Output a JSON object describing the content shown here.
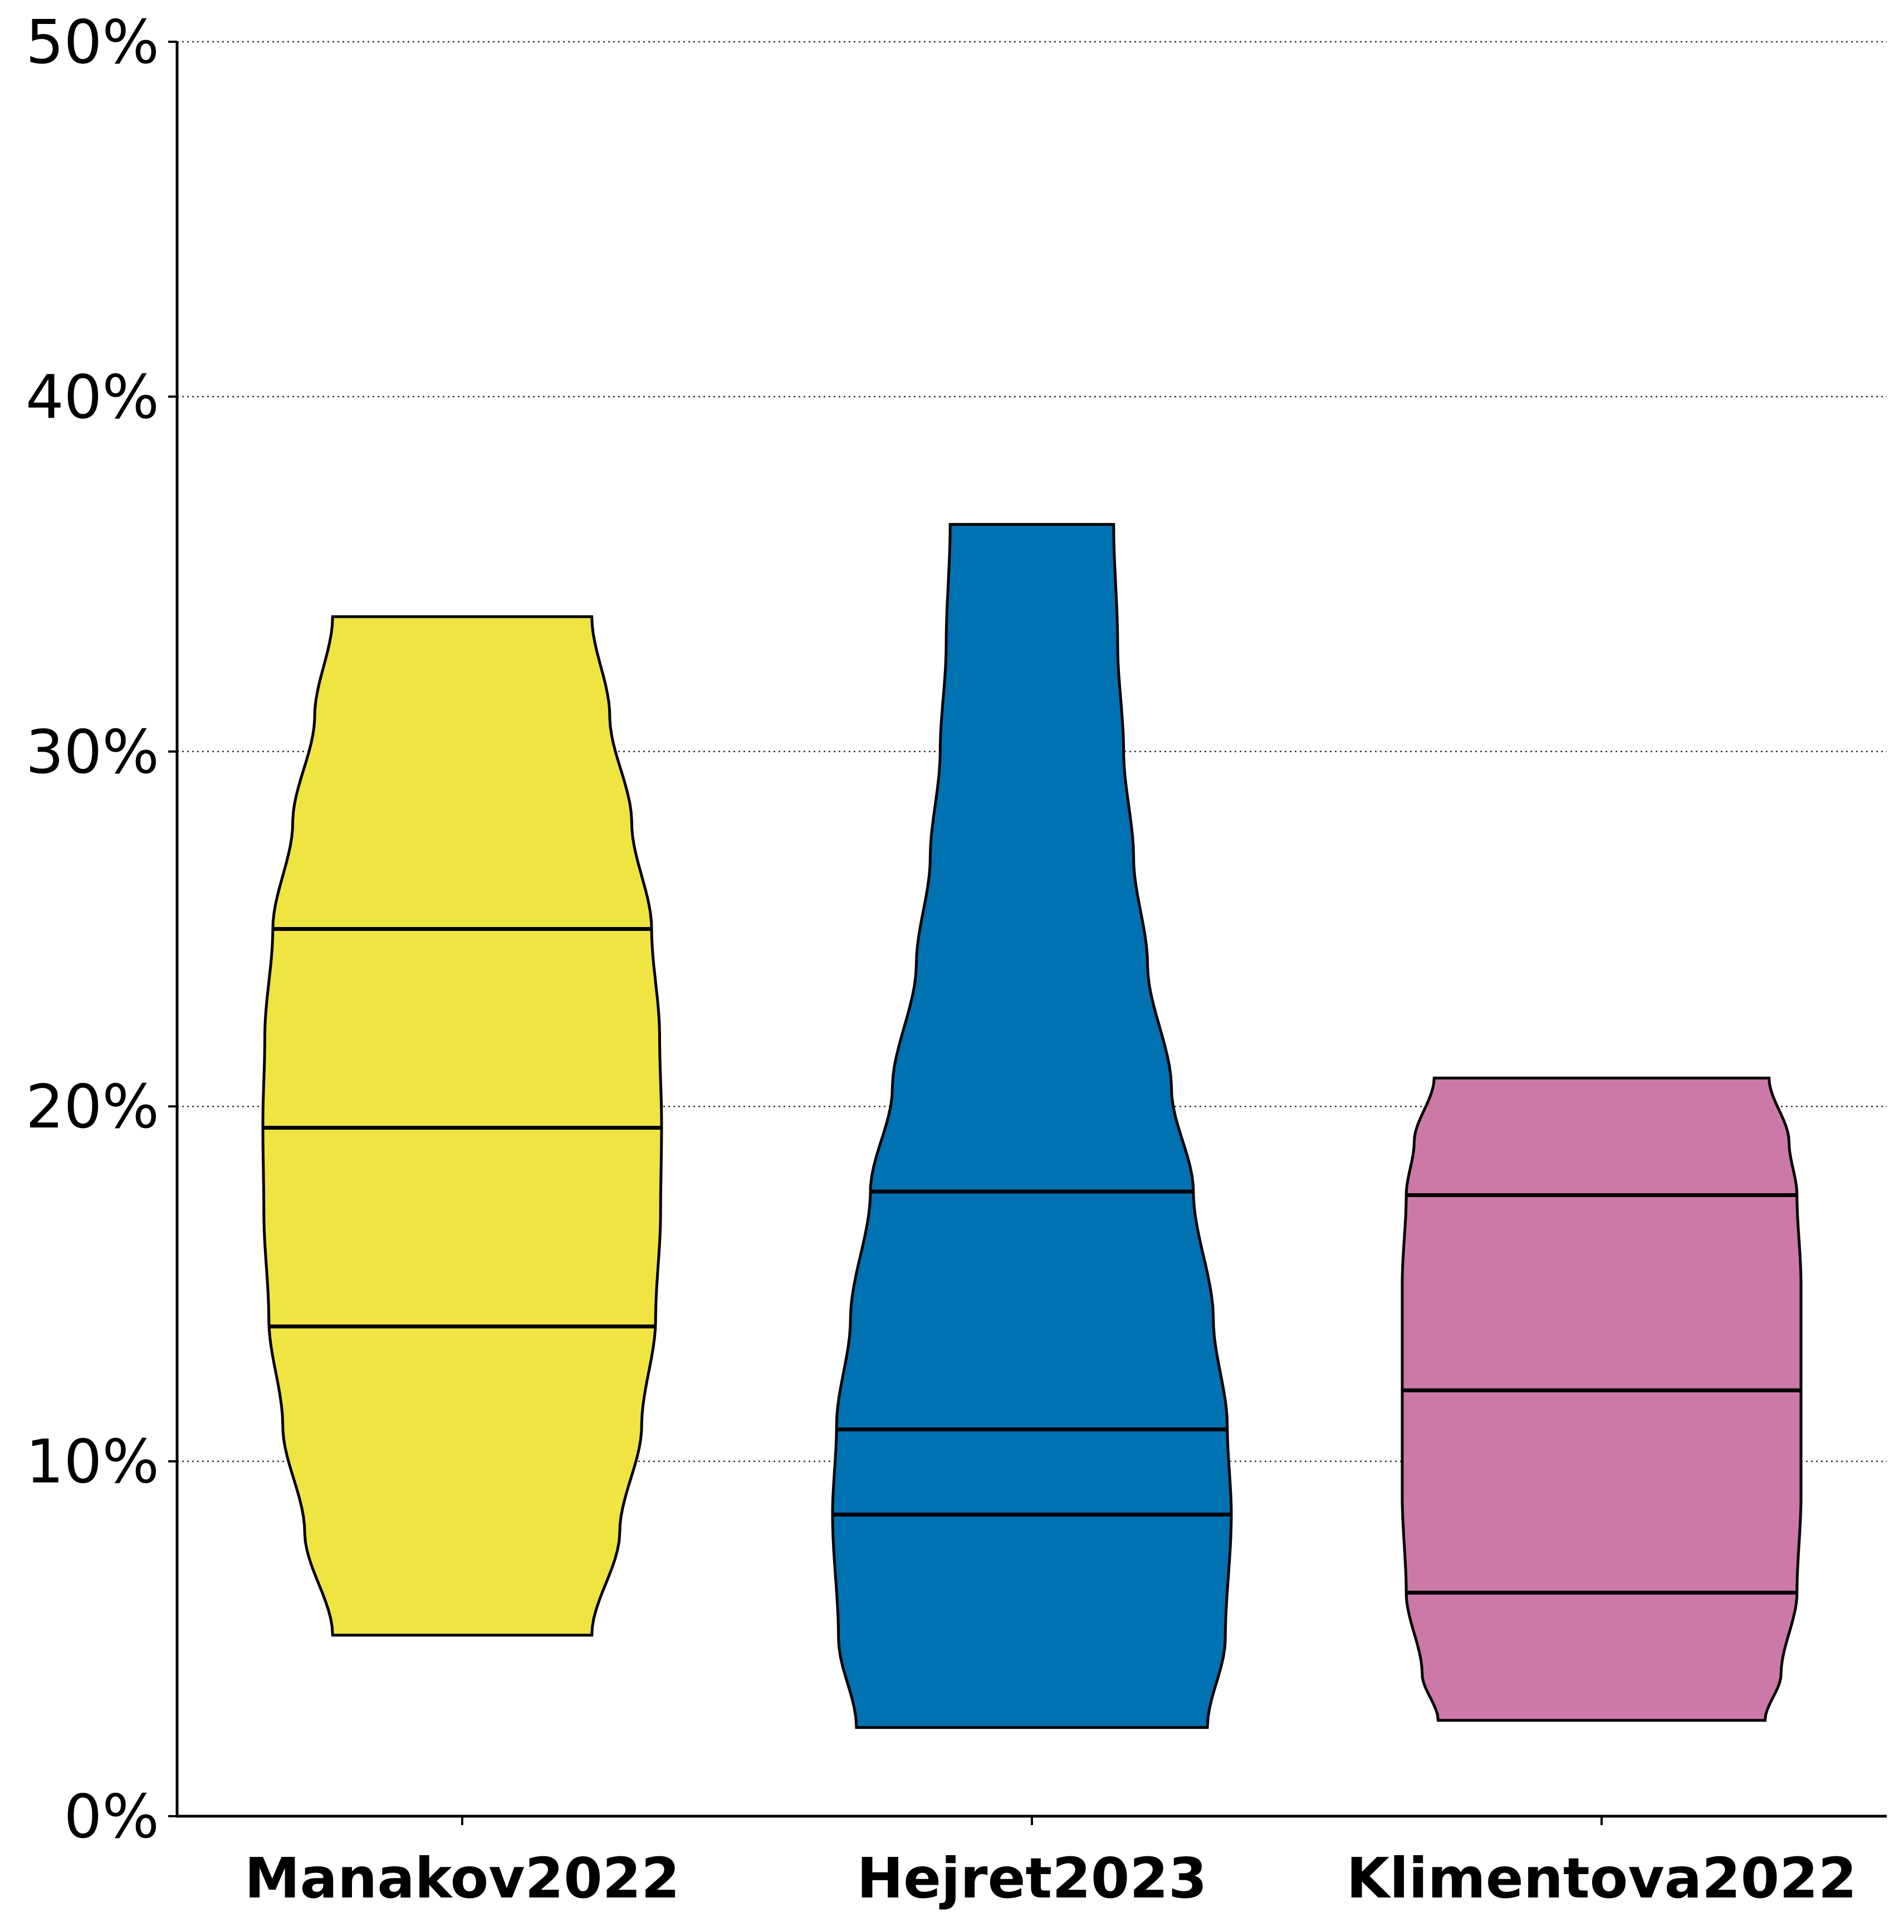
{
  "chart_data": {
    "type": "violin",
    "title": "",
    "xlabel": "",
    "ylabel": "",
    "ylim": [
      0,
      50
    ],
    "yticks": [
      "0%",
      "10%",
      "20%",
      "30%",
      "40%",
      "50%"
    ],
    "ytick_values": [
      0,
      10,
      20,
      30,
      40,
      50
    ],
    "grid": "horizontal dotted",
    "categories": [
      "Manakov2022",
      "Hejret2023",
      "Klimentova2022"
    ],
    "series": [
      {
        "color": "#F0E442",
        "min": 5.1,
        "max": 33.8,
        "quartiles": [
          13.8,
          19.4,
          25.0
        ],
        "density_y": [
          5.1,
          8.0,
          11.0,
          14.0,
          17.0,
          19.5,
          22.0,
          25.0,
          28.0,
          31.0,
          33.8
        ],
        "density_w": [
          0.65,
          0.79,
          0.9,
          0.97,
          0.995,
          1.0,
          0.99,
          0.95,
          0.85,
          0.74,
          0.65
        ]
      },
      {
        "color": "#0072B2",
        "min": 2.5,
        "max": 36.4,
        "quartiles": [
          8.5,
          10.9,
          17.6
        ],
        "density_y": [
          2.5,
          5.0,
          8.5,
          11.0,
          14.0,
          17.6,
          20.5,
          24.0,
          27.0,
          30.0,
          33.0,
          36.4
        ],
        "density_w": [
          0.88,
          0.97,
          1.0,
          0.98,
          0.91,
          0.81,
          0.7,
          0.58,
          0.51,
          0.46,
          0.43,
          0.41
        ]
      },
      {
        "color": "#CC79A7",
        "min": 2.7,
        "max": 20.8,
        "quartiles": [
          6.3,
          12.0,
          17.5
        ],
        "density_y": [
          2.7,
          4.0,
          6.3,
          9.0,
          12.0,
          15.0,
          17.5,
          19.0,
          20.8
        ],
        "density_w": [
          0.82,
          0.9,
          0.98,
          1.0,
          1.0,
          1.0,
          0.98,
          0.94,
          0.84
        ]
      }
    ]
  }
}
